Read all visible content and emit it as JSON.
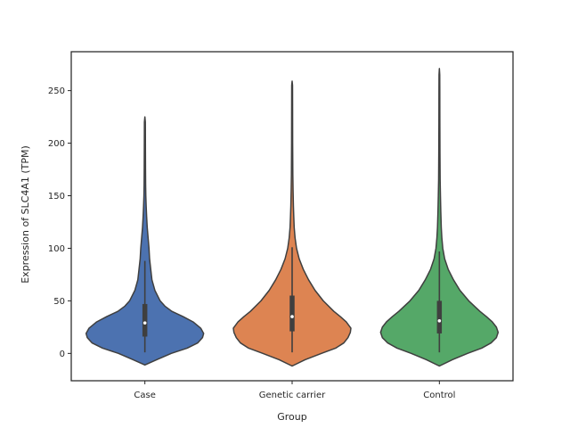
{
  "chart_data": {
    "type": "violin",
    "xlabel": "Group",
    "ylabel": "Expression of SLC4A1 (TPM)",
    "ylim": [
      -26,
      287
    ],
    "yticks": [
      0,
      50,
      100,
      150,
      200,
      250
    ],
    "grid": false,
    "categories": [
      "Case",
      "Genetic carrier",
      "Control"
    ],
    "violins": [
      {
        "category": "Case",
        "color": "#4c72b0",
        "median": 29,
        "q1": 16,
        "q3": 47,
        "whisker_low": 1,
        "whisker_high": 88,
        "min": -11,
        "max": 225,
        "density_profile": [
          [
            -11,
            0.0
          ],
          [
            -6,
            0.2
          ],
          [
            0,
            0.45
          ],
          [
            5,
            0.72
          ],
          [
            10,
            0.9
          ],
          [
            15,
            0.98
          ],
          [
            19,
            1.0
          ],
          [
            24,
            0.95
          ],
          [
            30,
            0.82
          ],
          [
            35,
            0.65
          ],
          [
            40,
            0.46
          ],
          [
            45,
            0.34
          ],
          [
            50,
            0.26
          ],
          [
            60,
            0.17
          ],
          [
            70,
            0.12
          ],
          [
            80,
            0.1
          ],
          [
            90,
            0.08
          ],
          [
            100,
            0.07
          ],
          [
            110,
            0.055
          ],
          [
            120,
            0.04
          ],
          [
            130,
            0.03
          ],
          [
            140,
            0.022
          ],
          [
            150,
            0.016
          ],
          [
            160,
            0.013
          ],
          [
            175,
            0.011
          ],
          [
            200,
            0.009
          ],
          [
            220,
            0.008
          ],
          [
            225,
            0.0
          ]
        ]
      },
      {
        "category": "Genetic carrier",
        "color": "#dd8452",
        "median": 35,
        "q1": 21,
        "q3": 55,
        "whisker_low": 1,
        "whisker_high": 101,
        "min": -12,
        "max": 259,
        "density_profile": [
          [
            -12,
            0.0
          ],
          [
            -6,
            0.22
          ],
          [
            0,
            0.5
          ],
          [
            5,
            0.74
          ],
          [
            10,
            0.88
          ],
          [
            15,
            0.95
          ],
          [
            20,
            0.99
          ],
          [
            24,
            1.0
          ],
          [
            30,
            0.92
          ],
          [
            35,
            0.82
          ],
          [
            40,
            0.71
          ],
          [
            50,
            0.53
          ],
          [
            60,
            0.39
          ],
          [
            70,
            0.28
          ],
          [
            80,
            0.19
          ],
          [
            90,
            0.12
          ],
          [
            100,
            0.075
          ],
          [
            110,
            0.05
          ],
          [
            120,
            0.035
          ],
          [
            130,
            0.028
          ],
          [
            140,
            0.022
          ],
          [
            155,
            0.016
          ],
          [
            170,
            0.012
          ],
          [
            200,
            0.009
          ],
          [
            230,
            0.008
          ],
          [
            255,
            0.007
          ],
          [
            259,
            0.0
          ]
        ]
      },
      {
        "category": "Control",
        "color": "#55a868",
        "median": 31,
        "q1": 19,
        "q3": 50,
        "whisker_low": 1,
        "whisker_high": 97,
        "min": -12,
        "max": 271,
        "density_profile": [
          [
            -12,
            0.0
          ],
          [
            -6,
            0.22
          ],
          [
            0,
            0.48
          ],
          [
            5,
            0.72
          ],
          [
            10,
            0.88
          ],
          [
            15,
            0.97
          ],
          [
            20,
            1.0
          ],
          [
            25,
            0.97
          ],
          [
            30,
            0.9
          ],
          [
            35,
            0.8
          ],
          [
            40,
            0.69
          ],
          [
            50,
            0.5
          ],
          [
            60,
            0.35
          ],
          [
            70,
            0.24
          ],
          [
            80,
            0.15
          ],
          [
            90,
            0.09
          ],
          [
            100,
            0.058
          ],
          [
            110,
            0.042
          ],
          [
            120,
            0.032
          ],
          [
            135,
            0.024
          ],
          [
            150,
            0.018
          ],
          [
            165,
            0.013
          ],
          [
            190,
            0.01
          ],
          [
            220,
            0.008
          ],
          [
            250,
            0.007
          ],
          [
            265,
            0.006
          ],
          [
            271,
            0.0
          ]
        ]
      }
    ]
  }
}
